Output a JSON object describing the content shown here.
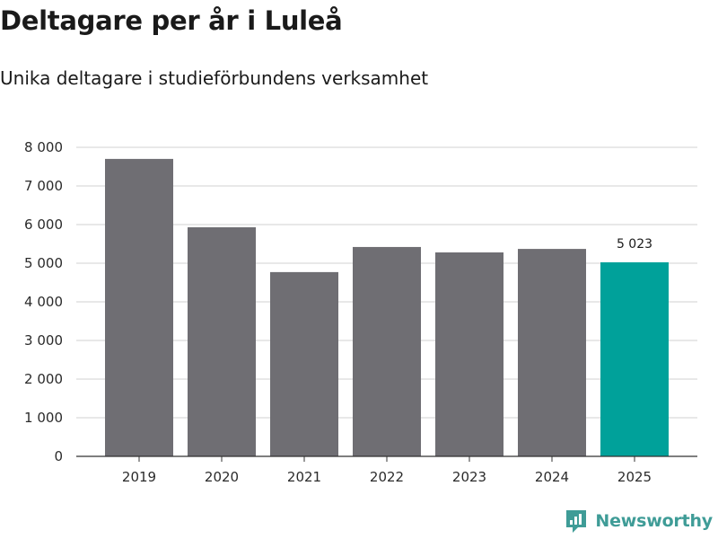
{
  "header": {
    "title": "Deltagare per år i Luleå",
    "subtitle": "Unika deltagare i studieförbundens verksamhet"
  },
  "branding": {
    "logo_text": "Newsworthy",
    "logo_icon": "newsworthy-logo-icon",
    "logo_color": "#3f9c97"
  },
  "colors": {
    "bar_default": "#6f6e73",
    "bar_highlight": "#00a19a",
    "grid": "#d9d9d9",
    "axis": "#333333"
  },
  "chart_data": {
    "type": "bar",
    "title": "Deltagare per år i Luleå",
    "subtitle": "Unika deltagare i studieförbundens verksamhet",
    "categories": [
      "2019",
      "2020",
      "2021",
      "2022",
      "2023",
      "2024",
      "2025"
    ],
    "values": [
      7700,
      5930,
      4770,
      5420,
      5280,
      5370,
      5023
    ],
    "highlight_index": 6,
    "annotations": [
      {
        "category": "2025",
        "text": "5 023"
      }
    ],
    "xlabel": "",
    "ylabel": "",
    "ylim": [
      0,
      8000
    ],
    "yticks": [
      0,
      1000,
      2000,
      3000,
      4000,
      5000,
      6000,
      7000,
      8000
    ],
    "ytick_labels": [
      "0",
      "1 000",
      "2 000",
      "3 000",
      "4 000",
      "5 000",
      "6 000",
      "7 000",
      "8 000"
    ],
    "grid": true
  }
}
